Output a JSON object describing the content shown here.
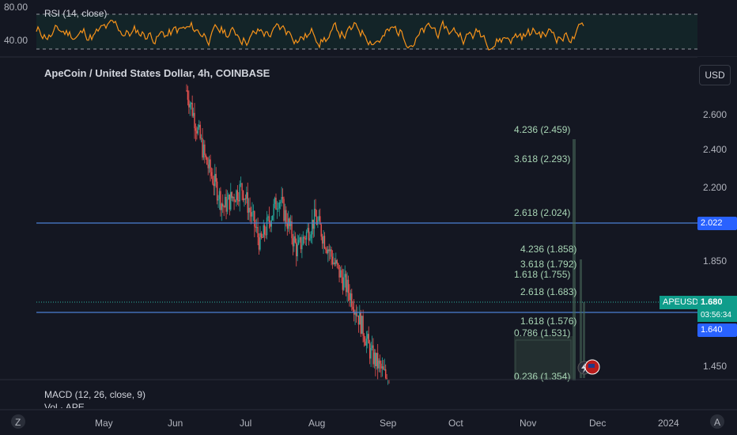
{
  "header": {
    "title": "ApeCoin / United States Dollar, 4h, COINBASE",
    "currency_button": "USD"
  },
  "rsi": {
    "label": "RSI (14, close)",
    "levels": [
      "80.00",
      "40.00"
    ],
    "line_color": "#f7931a"
  },
  "macd": {
    "label": "MACD (12, 26, close, 9)"
  },
  "volume": {
    "label": "Vol · APE"
  },
  "price_tags": {
    "line_a": "2.022",
    "line_b": "1.640",
    "symbol": "APEUSD",
    "last": "1.680",
    "countdown": "03:56:34"
  },
  "fib_labels": [
    "4.236 (2.459)",
    "3.618 (2.293)",
    "2.618 (2.024)",
    "4.236 (1.858)",
    "3.618 (1.792)",
    "1.618 (1.755)",
    "2.618 (1.683)",
    "1.618 (1.576)",
    "0.786 (1.531)",
    "0.236 (1.354)"
  ],
  "bottom_bar": {
    "left": "Z",
    "right": "A"
  },
  "chart_data": {
    "type": "candlestick",
    "title": "ApeCoin / United States Dollar, 4h, COINBASE",
    "x_tick_labels": [
      "May",
      "Jun",
      "Jul",
      "Aug",
      "Sep",
      "Oct",
      "Nov",
      "Dec",
      "2024"
    ],
    "y_tick_labels": [
      "2.600",
      "2.400",
      "2.200",
      "2.022",
      "1.850",
      "1.680",
      "1.640",
      "1.450"
    ],
    "y_scale": "log",
    "horizontal_lines": [
      2.022,
      1.64
    ],
    "last_price": 1.68,
    "rsi_levels": [
      80,
      40
    ],
    "series": [
      {
        "name": "",
        "points": [
          {
            "x": "Jun",
            "y": 2.75
          },
          {
            "x": "Jun",
            "y": 2.35
          },
          {
            "x": "Jun",
            "y": 2.1
          },
          {
            "x": "Jul",
            "y": 2.2
          },
          {
            "x": "Jul",
            "y": 1.93
          },
          {
            "x": "Jul",
            "y": 2.15
          },
          {
            "x": "Aug",
            "y": 1.9
          },
          {
            "x": "Aug",
            "y": 2.05
          },
          {
            "x": "Aug",
            "y": 1.85
          },
          {
            "x": "Aug",
            "y": 1.7
          },
          {
            "x": "Aug",
            "y": 1.5
          },
          {
            "x": "Sep",
            "y": 1.4
          }
        ]
      }
    ]
  }
}
